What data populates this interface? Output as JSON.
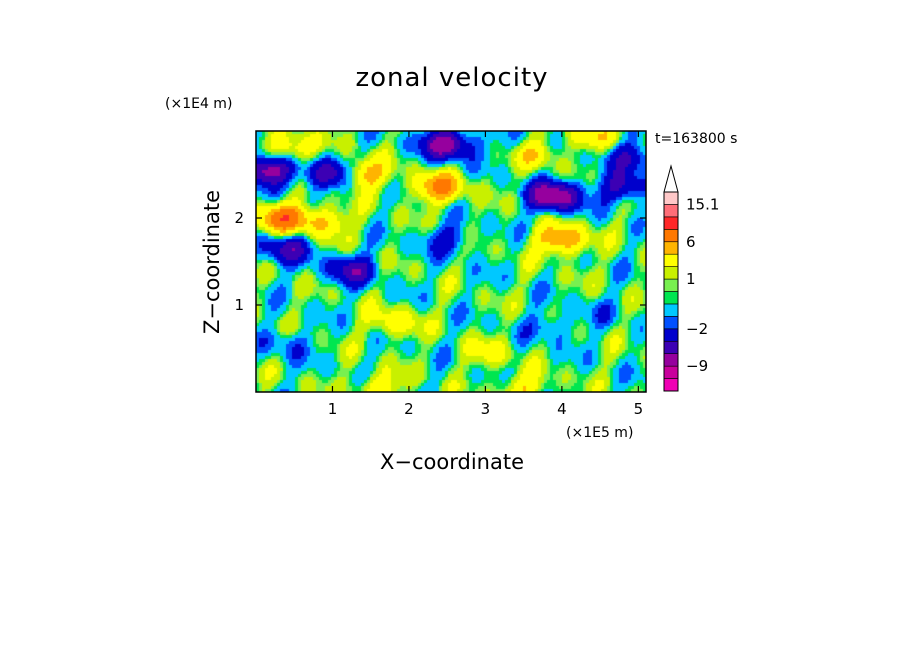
{
  "chart_data": {
    "type": "heatmap",
    "title": "zonal velocity",
    "xlabel": "X−coordinate",
    "ylabel": "Z−coordinate",
    "x_unit": "(×1E5 m)",
    "y_unit": "(×1E4 m)",
    "time_label": "t=163800 s",
    "xlim": [
      0,
      5.1
    ],
    "ylim": [
      0,
      3
    ],
    "x_ticks": [
      "1",
      "2",
      "3",
      "4",
      "5"
    ],
    "x_tick_values": [
      1,
      2,
      3,
      4,
      5
    ],
    "y_ticks": [
      "1",
      "2"
    ],
    "y_tick_values": [
      1,
      2
    ],
    "colorbar": {
      "levels": [
        -15,
        -12,
        -9,
        -6,
        -4,
        -2,
        -1,
        0,
        0.5,
        1,
        2,
        4,
        6,
        9,
        12,
        15.1
      ],
      "colors": [
        "#f000b4",
        "#c8009c",
        "#96009e",
        "#3c00b4",
        "#0000cc",
        "#0050ff",
        "#00c8ff",
        "#00e650",
        "#78f050",
        "#c8f000",
        "#ffff00",
        "#ffb400",
        "#ff7800",
        "#ff2828",
        "#ff6e78",
        "#ffc8c8"
      ],
      "extend": "max",
      "labels": [
        "15.1",
        "6",
        "1",
        "−2",
        "−9"
      ],
      "label_values": [
        15.1,
        6,
        1,
        -2,
        -9
      ]
    },
    "field": {
      "background": 0.3,
      "features": [
        {
          "x": 0.15,
          "y": 2.55,
          "v": -8
        },
        {
          "x": 0.95,
          "y": 2.5,
          "v": -6
        },
        {
          "x": 0.4,
          "y": 1.65,
          "v": -5
        },
        {
          "x": 1.25,
          "y": 1.4,
          "v": -5
        },
        {
          "x": 2.5,
          "y": 2.85,
          "v": -8
        },
        {
          "x": 2.5,
          "y": 1.75,
          "v": -3
        },
        {
          "x": 3.9,
          "y": 2.25,
          "v": -9
        },
        {
          "x": 4.8,
          "y": 2.35,
          "v": -5
        },
        {
          "x": 4.9,
          "y": 2.7,
          "v": -4
        },
        {
          "x": 3.4,
          "y": 2.8,
          "v": -2
        },
        {
          "x": 3.85,
          "y": 0.75,
          "v": -2
        },
        {
          "x": 4.5,
          "y": 0.9,
          "v": -1
        },
        {
          "x": 0.4,
          "y": 0.55,
          "v": -2
        },
        {
          "x": 2.4,
          "y": 2.35,
          "v": 6
        },
        {
          "x": 1.4,
          "y": 2.5,
          "v": 5
        },
        {
          "x": 0.45,
          "y": 2.8,
          "v": 4
        },
        {
          "x": 0.35,
          "y": 2.0,
          "v": 7
        },
        {
          "x": 0.9,
          "y": 1.95,
          "v": 4
        },
        {
          "x": 4.0,
          "y": 1.75,
          "v": 6
        },
        {
          "x": 4.4,
          "y": 2.95,
          "v": 3
        },
        {
          "x": 3.6,
          "y": 2.75,
          "v": 4
        },
        {
          "x": 1.8,
          "y": 0.8,
          "v": 3
        },
        {
          "x": 3.05,
          "y": 0.45,
          "v": 2
        },
        {
          "x": 3.5,
          "y": 0.05,
          "v": 3
        },
        {
          "x": 1.6,
          "y": 0.05,
          "v": 3
        }
      ]
    }
  }
}
